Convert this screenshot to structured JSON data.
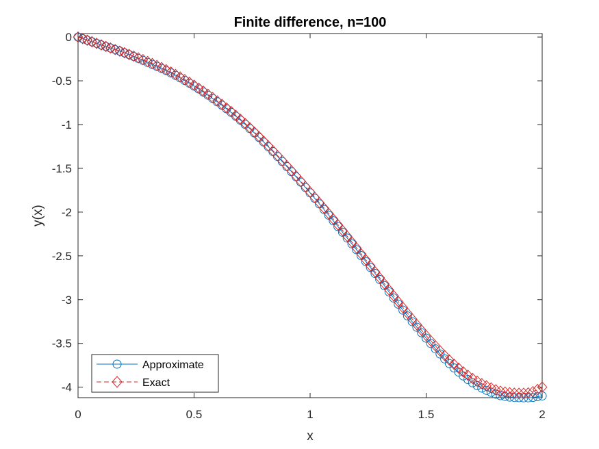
{
  "chart_data": {
    "type": "line",
    "title": "Finite difference, n=100",
    "xlabel": "x",
    "ylabel": "y(x)",
    "xlim": [
      0,
      2
    ],
    "ylim": [
      -4.12,
      0.04
    ],
    "xticks": [
      0,
      0.5,
      1,
      1.5,
      2
    ],
    "xtick_labels": [
      "0",
      "0.5",
      "1",
      "1.5",
      "2"
    ],
    "yticks": [
      0,
      -0.5,
      -1,
      -1.5,
      -2,
      -2.5,
      -3,
      -3.5,
      -4
    ],
    "ytick_labels": [
      "0",
      "-0.5",
      "-1",
      "-1.5",
      "-2",
      "-2.5",
      "-3",
      "-3.5",
      "-4"
    ],
    "grid": false,
    "legend_position": "bottom-left",
    "x": [
      0,
      0.1,
      0.2,
      0.3,
      0.4,
      0.5,
      0.6,
      0.7,
      0.8,
      0.9,
      1.0,
      1.1,
      1.2,
      1.3,
      1.4,
      1.5,
      1.6,
      1.7,
      1.8,
      1.85,
      1.9,
      1.95,
      2.0
    ],
    "series": [
      {
        "name": "Approximate",
        "color": "#0072BD",
        "line_style": "solid",
        "marker": "circle",
        "values": [
          0,
          -0.09,
          -0.18,
          -0.29,
          -0.41,
          -0.56,
          -0.74,
          -0.95,
          -1.2,
          -1.48,
          -1.78,
          -2.1,
          -2.43,
          -2.77,
          -3.12,
          -3.44,
          -3.73,
          -3.95,
          -4.08,
          -4.11,
          -4.12,
          -4.12,
          -4.1
        ]
      },
      {
        "name": "Exact",
        "color": "#D62728",
        "line_style": "dashed",
        "marker": "diamond",
        "values": [
          0,
          -0.09,
          -0.18,
          -0.28,
          -0.4,
          -0.55,
          -0.73,
          -0.94,
          -1.19,
          -1.47,
          -1.77,
          -2.08,
          -2.41,
          -2.75,
          -3.09,
          -3.41,
          -3.69,
          -3.9,
          -4.03,
          -4.06,
          -4.07,
          -4.06,
          -4.0
        ]
      }
    ]
  }
}
